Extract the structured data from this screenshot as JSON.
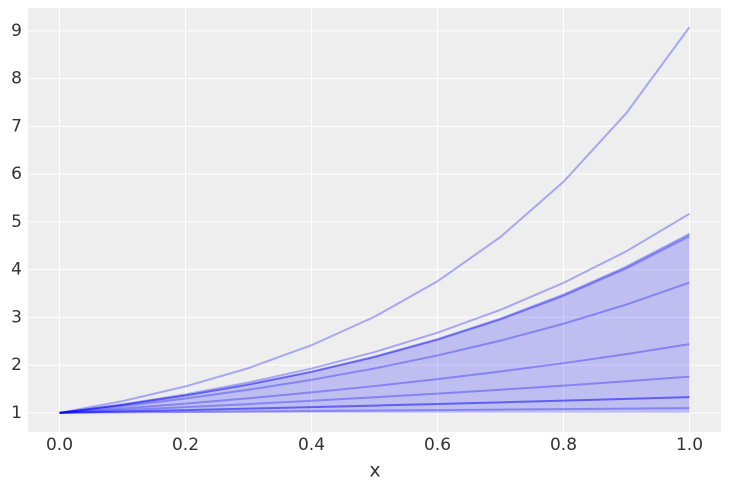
{
  "chart_data": {
    "type": "line",
    "xlabel": "x",
    "x": [
      0,
      0.1,
      0.2,
      0.3,
      0.4,
      0.5,
      0.6,
      0.7,
      0.8,
      0.9,
      1.0
    ],
    "series": [
      {
        "color": "#0000ff",
        "alpha": 0.3,
        "values": [
          1,
          1.247,
          1.555,
          1.938,
          2.417,
          3.013,
          3.757,
          4.684,
          5.84,
          7.282,
          9.08
        ]
      },
      {
        "color": "#0000ff",
        "alpha": 0.3,
        "values": [
          1,
          1.179,
          1.389,
          1.637,
          1.929,
          2.274,
          2.68,
          3.159,
          3.723,
          4.387,
          5.17
        ]
      },
      {
        "color": "#0000ff",
        "alpha": 0.3,
        "values": [
          1,
          1.169,
          1.366,
          1.596,
          1.865,
          2.179,
          2.547,
          2.976,
          3.478,
          4.064,
          4.75
        ]
      },
      {
        "color": "#0000ff",
        "alpha": 0.3,
        "values": [
          1,
          1.167,
          1.363,
          1.591,
          1.858,
          2.168,
          2.531,
          2.955,
          3.45,
          4.028,
          4.7
        ]
      },
      {
        "color": "#0000ff",
        "alpha": 0.3,
        "values": [
          1,
          1.141,
          1.301,
          1.484,
          1.693,
          1.931,
          2.203,
          2.513,
          2.867,
          3.27,
          3.73
        ]
      },
      {
        "color": "#0000ff",
        "alpha": 0.3,
        "values": [
          1,
          1.093,
          1.195,
          1.307,
          1.429,
          1.562,
          1.708,
          1.867,
          2.041,
          2.232,
          2.44
        ]
      },
      {
        "color": "#0000ff",
        "alpha": 0.3,
        "values": [
          1,
          1.058,
          1.12,
          1.185,
          1.254,
          1.327,
          1.404,
          1.486,
          1.572,
          1.663,
          1.76
        ]
      },
      {
        "color": "#0000ff",
        "alpha": 0.5,
        "values": [
          1,
          1.029,
          1.059,
          1.089,
          1.121,
          1.153,
          1.187,
          1.221,
          1.256,
          1.293,
          1.33
        ]
      },
      {
        "color": "#0000ff",
        "alpha": 0.3,
        "values": [
          1,
          1.01,
          1.019,
          1.029,
          1.039,
          1.049,
          1.059,
          1.069,
          1.079,
          1.09,
          1.1
        ]
      }
    ],
    "fill_between": {
      "color": "#0000ff",
      "alpha": 0.2,
      "lower": [
        1,
        1,
        1,
        1,
        1,
        1,
        1,
        1,
        1,
        1,
        1
      ],
      "upper": [
        1,
        1.169,
        1.366,
        1.596,
        1.865,
        2.179,
        2.547,
        2.976,
        3.478,
        4.064,
        4.75
      ]
    },
    "xlim": [
      -0.05,
      1.05
    ],
    "ylim": [
      0.6,
      9.48
    ],
    "xticks": [
      {
        "value": 0,
        "label": "0.0"
      },
      {
        "value": 0.2,
        "label": "0.2"
      },
      {
        "value": 0.4,
        "label": "0.4"
      },
      {
        "value": 0.6,
        "label": "0.6"
      },
      {
        "value": 0.8,
        "label": "0.8"
      },
      {
        "value": 1.0,
        "label": "1.0"
      }
    ],
    "yticks": [
      1,
      2,
      3,
      4,
      5,
      6,
      7,
      8,
      9
    ],
    "grid": true,
    "background": "#eeeeee"
  }
}
